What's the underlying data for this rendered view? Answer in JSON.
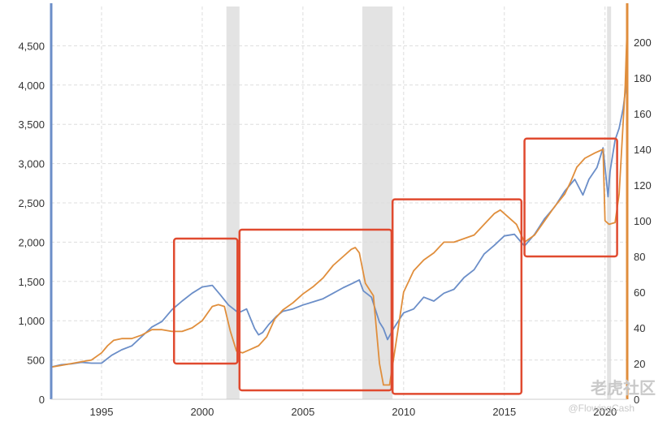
{
  "chart_data": {
    "type": "line",
    "title": "",
    "xlabel": "",
    "ylabel": "",
    "xlim": [
      1992.5,
      2021.1
    ],
    "x_ticks": [
      1995,
      2000,
      2005,
      2010,
      2015,
      2020
    ],
    "left_axis": {
      "lim": [
        0,
        5000
      ],
      "ticks": [
        0,
        500,
        1000,
        1500,
        2000,
        2500,
        3000,
        3500,
        4000,
        4500
      ],
      "tick_labels": [
        "0",
        "500",
        "1,000",
        "1,500",
        "2,000",
        "2,500",
        "3,000",
        "3,500",
        "4,000",
        "4,500"
      ],
      "color": "#6b8ec8"
    },
    "right_axis": {
      "lim": [
        0,
        220
      ],
      "ticks": [
        0,
        20,
        40,
        60,
        80,
        100,
        120,
        140,
        160,
        180,
        200
      ],
      "tick_labels": [
        "0",
        "20",
        "40",
        "60",
        "80",
        "100",
        "120",
        "140",
        "160",
        "180",
        "200"
      ],
      "color": "#e08e3c"
    },
    "shaded_periods": [
      [
        2001.2,
        2001.85
      ],
      [
        2007.95,
        2009.45
      ],
      [
        2020.1,
        2020.3
      ]
    ],
    "series": [
      {
        "axis": "left",
        "color": "#6b8ec8",
        "x": [
          1992.5,
          1993,
          1993.5,
          1994,
          1994.5,
          1995,
          1995.5,
          1996,
          1996.5,
          1997,
          1997.5,
          1998,
          1998.5,
          1999,
          1999.5,
          2000,
          2000.5,
          2000.9,
          2001.3,
          2001.8,
          2002.2,
          2002.6,
          2002.8,
          2003,
          2003.3,
          2003.7,
          2004,
          2004.5,
          2005,
          2005.5,
          2006,
          2006.5,
          2007,
          2007.5,
          2007.8,
          2008,
          2008.4,
          2008.8,
          2009.0,
          2009.2,
          2009.5,
          2010,
          2010.5,
          2011,
          2011.5,
          2012,
          2012.5,
          2013,
          2013.5,
          2014,
          2014.5,
          2015,
          2015.5,
          2016,
          2016.5,
          2017,
          2017.5,
          2018,
          2018.5,
          2018.9,
          2019.2,
          2019.6,
          2019.9,
          2020.15,
          2020.25,
          2020.5,
          2020.7,
          2020.9,
          2021.0,
          2021.1
        ],
        "y": [
          410,
          440,
          450,
          470,
          460,
          460,
          560,
          630,
          680,
          800,
          920,
          990,
          1140,
          1250,
          1350,
          1430,
          1450,
          1330,
          1200,
          1100,
          1150,
          900,
          820,
          850,
          950,
          1060,
          1120,
          1150,
          1200,
          1240,
          1280,
          1350,
          1420,
          1480,
          1520,
          1380,
          1300,
          980,
          900,
          760,
          900,
          1100,
          1150,
          1300,
          1250,
          1350,
          1400,
          1550,
          1650,
          1850,
          1960,
          2080,
          2100,
          1950,
          2100,
          2300,
          2450,
          2650,
          2800,
          2600,
          2800,
          2950,
          3200,
          2580,
          2900,
          3300,
          3450,
          3700,
          3900,
          4200
        ]
      },
      {
        "axis": "right",
        "color": "#e08e3c",
        "x": [
          1992.5,
          1993,
          1993.5,
          1994,
          1994.5,
          1995,
          1995.3,
          1995.6,
          1996,
          1996.5,
          1997,
          1997.5,
          1998,
          1998.5,
          1999,
          1999.5,
          2000,
          2000.5,
          2000.8,
          2001.1,
          2001.4,
          2001.7,
          2002,
          2002.4,
          2002.8,
          2003.2,
          2003.6,
          2004,
          2004.5,
          2005,
          2005.5,
          2006,
          2006.5,
          2007,
          2007.4,
          2007.6,
          2007.8,
          2008.1,
          2008.5,
          2008.8,
          2009.0,
          2009.3,
          2009.6,
          2010,
          2010.5,
          2011,
          2011.5,
          2012,
          2012.5,
          2013,
          2013.5,
          2014,
          2014.5,
          2014.8,
          2015.2,
          2015.6,
          2016,
          2016.5,
          2017,
          2017.5,
          2018,
          2018.3,
          2018.6,
          2019,
          2019.5,
          2019.9,
          2020.0,
          2020.2,
          2020.5,
          2020.7,
          2020.85,
          2021.0,
          2021.1
        ],
        "y": [
          18,
          19,
          20,
          21,
          22,
          26,
          30,
          33,
          34,
          34,
          36,
          39,
          39,
          38,
          38,
          40,
          44,
          52,
          53,
          52,
          38,
          27,
          26,
          28,
          30,
          35,
          45,
          50,
          54,
          59,
          63,
          68,
          75,
          80,
          84,
          85,
          82,
          65,
          58,
          20,
          8,
          8,
          30,
          60,
          72,
          78,
          82,
          88,
          88,
          90,
          92,
          98,
          104,
          106,
          102,
          98,
          88,
          92,
          100,
          108,
          115,
          122,
          130,
          135,
          138,
          140,
          100,
          98,
          99,
          115,
          145,
          175,
          210
        ]
      }
    ],
    "highlight_boxes": [
      {
        "x": [
          1998.6,
          2001.75
        ],
        "y": [
          20,
          90
        ]
      },
      {
        "x": [
          2001.85,
          2009.4
        ],
        "y": [
          5,
          95
        ]
      },
      {
        "x": [
          2009.45,
          2015.85
        ],
        "y": [
          3,
          112
        ]
      },
      {
        "x": [
          2016.0,
          2020.6
        ],
        "y": [
          80,
          146
        ]
      }
    ],
    "highlight_color": "#e04a2f"
  },
  "watermark": {
    "brand": "老虎社区",
    "handle": "@FlowingCash"
  }
}
